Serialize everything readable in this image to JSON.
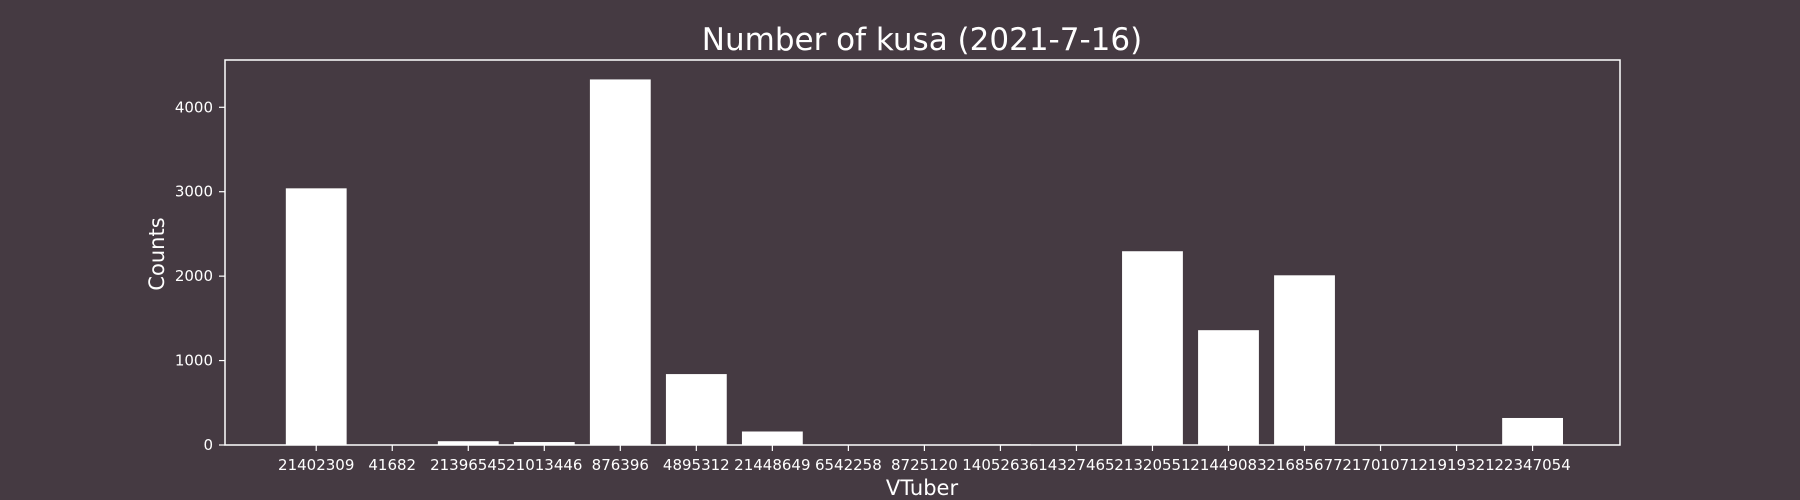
{
  "colors": {
    "background": "#453a42",
    "bar": "#ffffff",
    "axis": "#ffffff",
    "text": "#ffffff"
  },
  "chart_data": {
    "type": "bar",
    "title": "Number of kusa (2021-7-16)",
    "xlabel": "VTuber",
    "ylabel": "Counts",
    "categories": [
      "21402309",
      "41682",
      "21396545",
      "21013446",
      "876396",
      "4895312",
      "21448649",
      "6542258",
      "8725120",
      "14052636",
      "14327465",
      "21320551",
      "21449083",
      "21685677",
      "21701071",
      "21919321",
      "22347054"
    ],
    "values": [
      3040,
      0,
      45,
      35,
      4330,
      840,
      160,
      0,
      0,
      8,
      0,
      2295,
      1360,
      2010,
      0,
      0,
      320
    ],
    "ylim": [
      0,
      4560
    ],
    "yticks": [
      0,
      1000,
      2000,
      3000,
      4000
    ],
    "grid": false,
    "legend": "none"
  }
}
